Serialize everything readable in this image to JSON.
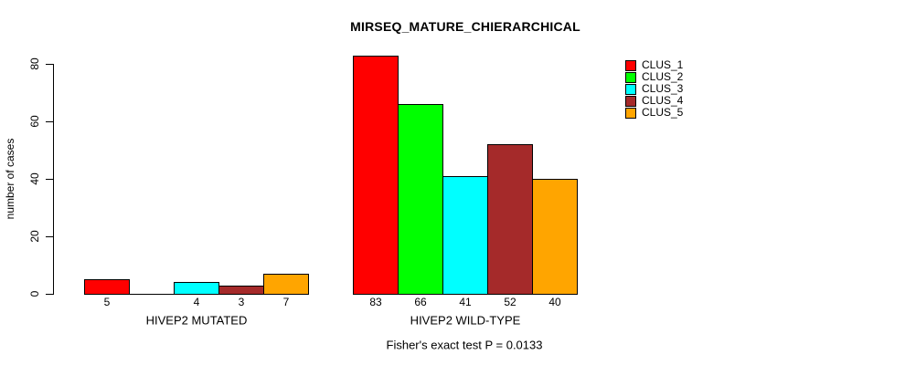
{
  "title": "MIRSEQ_MATURE_CHIERARCHICAL",
  "subtitle": "Fisher's exact test P = 0.0133",
  "ylabel": "number of cases",
  "chart_data": {
    "type": "bar",
    "title": "MIRSEQ_MATURE_CHIERARCHICAL",
    "sub": "Fisher's exact test P = 0.0133",
    "xlabel": "",
    "ylabel": "number of cases",
    "ylim": [
      0,
      80
    ],
    "yticks": [
      "0",
      "20",
      "40",
      "60",
      "80"
    ],
    "grid": false,
    "legend_position": "top-right",
    "series": [
      "CLUS_1",
      "CLUS_2",
      "CLUS_3",
      "CLUS_4",
      "CLUS_5"
    ],
    "colors": [
      "#FF0000",
      "#00FF00",
      "#00FFFF",
      "#A52A2A",
      "#FFA500"
    ],
    "groups": [
      {
        "label": "HIVEP2 MUTATED",
        "values": [
          5,
          0,
          4,
          3,
          7
        ],
        "bar_labels": [
          "5",
          "",
          "4",
          "3",
          "7"
        ]
      },
      {
        "label": "HIVEP2 WILD-TYPE",
        "values": [
          83,
          66,
          41,
          52,
          40
        ],
        "bar_labels": [
          "83",
          "66",
          "41",
          "52",
          "40"
        ]
      }
    ]
  }
}
